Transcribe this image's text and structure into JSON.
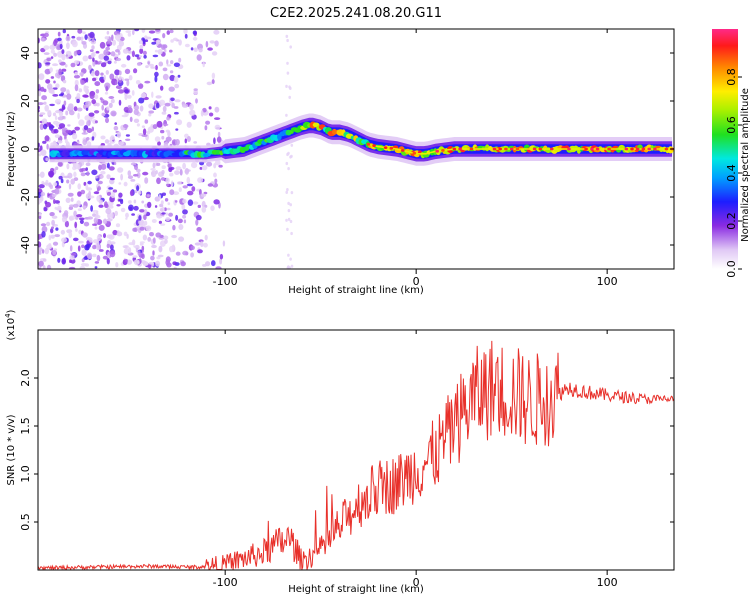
{
  "title": "C2E2.2025.241.08.20.G11",
  "chart_data": [
    {
      "type": "heatmap",
      "xlabel": "Height of straight line (km)",
      "ylabel": "Frequency (Hz)",
      "xlim": [
        -198,
        135
      ],
      "ylim": [
        -50,
        50
      ],
      "x_ticks": [
        -100,
        0,
        100
      ],
      "y_ticks": [
        -40,
        -20,
        0,
        20,
        40
      ],
      "ridge_curve": {
        "x": [
          -185,
          -150,
          -125,
          -110,
          -100,
          -90,
          -80,
          -70,
          -60,
          -55,
          -50,
          -45,
          -40,
          -35,
          -30,
          -25,
          -20,
          -10,
          -5,
          0,
          5,
          10,
          20,
          40,
          60,
          80,
          100,
          120,
          135
        ],
        "y": [
          -2,
          -2,
          -2,
          -2,
          -1,
          0,
          3,
          6,
          9,
          10,
          9,
          7,
          7,
          6,
          4,
          2,
          1,
          0,
          -1,
          -2,
          -2,
          -1,
          0,
          0,
          0,
          0,
          0,
          0,
          0
        ]
      },
      "colorbar": {
        "label": "Normalized spectral amplitude",
        "ticks": [
          0.0,
          0.2,
          0.4,
          0.6,
          0.8
        ],
        "range": [
          0,
          1
        ]
      }
    },
    {
      "type": "line",
      "xlabel": "Height of straight line (km)",
      "ylabel": "SNR (10 * v/v)",
      "scale_note": "(x10",
      "scale_exponent": "4",
      "xlim": [
        -198,
        135
      ],
      "ylim": [
        0,
        2.5
      ],
      "x_ticks": [
        -100,
        0,
        100
      ],
      "y_ticks": [
        0.5,
        1.0,
        1.5,
        2.0
      ],
      "series": [
        {
          "name": "SNR",
          "color": "#e8302a",
          "x": [
            -198,
            -170,
            -140,
            -115,
            -100,
            -90,
            -80,
            -72,
            -66,
            -60,
            -50,
            -40,
            -30,
            -20,
            -10,
            0,
            10,
            20,
            30,
            40,
            50,
            60,
            70,
            80,
            90,
            100,
            110,
            120,
            135
          ],
          "y": [
            0.02,
            0.03,
            0.04,
            0.03,
            0.06,
            0.12,
            0.18,
            0.28,
            0.32,
            0.1,
            0.2,
            0.45,
            0.7,
            0.85,
            0.9,
            1.05,
            1.2,
            1.5,
            1.8,
            1.9,
            1.85,
            1.75,
            1.8,
            1.9,
            1.85,
            1.82,
            1.8,
            1.78,
            1.78
          ]
        }
      ]
    }
  ]
}
